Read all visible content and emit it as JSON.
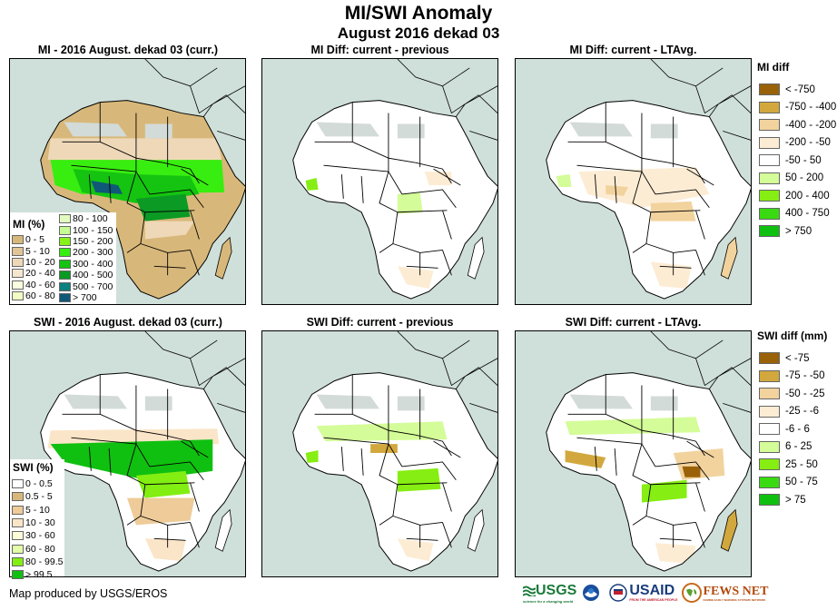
{
  "header": {
    "title": "MI/SWI Anomaly",
    "subtitle": "August 2016 dekad 03"
  },
  "panels": [
    {
      "title": "MI - 2016 August. dekad 03 (curr.)",
      "scheme": "mi"
    },
    {
      "title": "MI Diff: current - previous",
      "scheme": "midiff_prev"
    },
    {
      "title": "MI Diff: current - LTAvg.",
      "scheme": "midiff_lta"
    },
    {
      "title": "SWI - 2016 August. dekad 03 (curr.)",
      "scheme": "swi"
    },
    {
      "title": "SWI Diff: current - previous",
      "scheme": "swidiff_prev"
    },
    {
      "title": "SWI Diff: current - LTAvg.",
      "scheme": "swidiff_lta"
    }
  ],
  "legends": {
    "mi": {
      "title": "MI (%)",
      "col1": [
        {
          "label": "0 - 5",
          "color": "#d8b87a"
        },
        {
          "label": "5 - 10",
          "color": "#e2c596"
        },
        {
          "label": "10 - 20",
          "color": "#eed8b8"
        },
        {
          "label": "20 - 40",
          "color": "#f5e6cf"
        },
        {
          "label": "40 - 60",
          "color": "#fdfde0"
        },
        {
          "label": "60 - 80",
          "color": "#f3fcc4"
        }
      ],
      "col2": [
        {
          "label": "80 - 100",
          "color": "#e2fcc0"
        },
        {
          "label": "100 - 150",
          "color": "#c6fc94"
        },
        {
          "label": "150 - 200",
          "color": "#86f21a"
        },
        {
          "label": "200 - 300",
          "color": "#38ee10"
        },
        {
          "label": "300 - 400",
          "color": "#14c410"
        },
        {
          "label": "400 - 500",
          "color": "#0b9a24"
        },
        {
          "label": "500 - 700",
          "color": "#0d8080"
        },
        {
          "label": "> 700",
          "color": "#105878"
        }
      ]
    },
    "swi": {
      "title": "SWI (%)",
      "items": [
        {
          "label": "0 - 0.5",
          "color": "#ffffff"
        },
        {
          "label": "0.5 - 5",
          "color": "#d8b87a"
        },
        {
          "label": "5 - 10",
          "color": "#eecb98"
        },
        {
          "label": "10 - 30",
          "color": "#fbe5c8"
        },
        {
          "label": "30 - 60",
          "color": "#fcfcd8"
        },
        {
          "label": "60 - 80",
          "color": "#e2fca8"
        },
        {
          "label": "80 - 99.5",
          "color": "#82ee12"
        },
        {
          "label": "> 99.5",
          "color": "#10c010"
        }
      ]
    },
    "mi_diff": {
      "title": "MI diff",
      "items": [
        {
          "label": "< -750",
          "color": "#9a6208"
        },
        {
          "label": "-750 - -400",
          "color": "#d2a83e"
        },
        {
          "label": "-400 - -200",
          "color": "#f2d39e"
        },
        {
          "label": "-200 - -50",
          "color": "#fdecd4"
        },
        {
          "label": "-50 - 50",
          "color": "#ffffff"
        },
        {
          "label": "50 - 200",
          "color": "#d4fc98"
        },
        {
          "label": "200 - 400",
          "color": "#86ee12"
        },
        {
          "label": "400 - 750",
          "color": "#3ada12"
        },
        {
          "label": "> 750",
          "color": "#10c010"
        }
      ]
    },
    "swi_diff": {
      "title": "SWI diff (mm)",
      "items": [
        {
          "label": "< -75",
          "color": "#9a6208"
        },
        {
          "label": "-75 - -50",
          "color": "#d2a83e"
        },
        {
          "label": "-50 - -25",
          "color": "#f2d39e"
        },
        {
          "label": "-25 - -6",
          "color": "#fdecd4"
        },
        {
          "label": "-6 - 6",
          "color": "#ffffff"
        },
        {
          "label": "6 - 25",
          "color": "#d4fc98"
        },
        {
          "label": "25 - 50",
          "color": "#86ee12"
        },
        {
          "label": "50 - 75",
          "color": "#3ada12"
        },
        {
          "label": "> 75",
          "color": "#10c010"
        }
      ]
    }
  },
  "colors": {
    "ocean": "#cfdfd9",
    "nodata": "#d3dbd8"
  },
  "footer": {
    "credit": "Map produced by USGS/EROS",
    "logos": [
      {
        "name": "USGS",
        "tagline": "science for a changing world"
      },
      {
        "name": "NOAA"
      },
      {
        "name": "USAID",
        "tagline": "FROM THE AMERICAN PEOPLE"
      },
      {
        "name": "FEWS NET",
        "tagline": "FAMINE EARLY WARNING SYSTEMS NETWORK"
      }
    ]
  }
}
